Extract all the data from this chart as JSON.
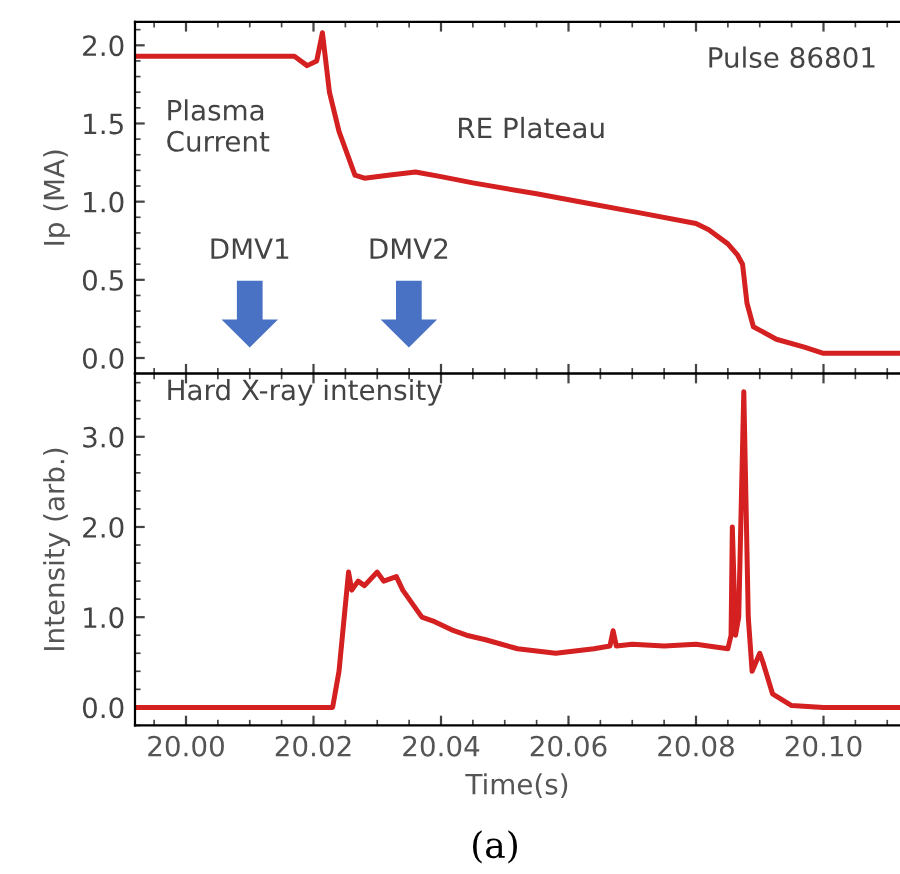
{
  "chart_data": [
    {
      "type": "line",
      "ylabel": "Ip (MA)",
      "xlim": [
        19.992,
        20.112
      ],
      "ylim": [
        -0.1,
        2.15
      ],
      "yticks": [
        {
          "value": 0,
          "label": "0.0"
        },
        0.5,
        {
          "value": 1,
          "label": "1.0"
        },
        1.5,
        {
          "value": 2,
          "label": "2.0"
        }
      ],
      "xticks": [
        20.0,
        20.02,
        20.04,
        20.06,
        20.08,
        20.1
      ],
      "tick_labels": "y",
      "grid": false,
      "legend": false,
      "annotations": [
        "Pulse 86801",
        "Plasma\nCurrent",
        "RE Plateau",
        "DMV1",
        "DMV2"
      ],
      "series": [
        {
          "color": "#d42020",
          "x": [
            19.992,
            20.0,
            20.01,
            20.017,
            20.019,
            20.0205,
            20.0214,
            20.0225,
            20.024,
            20.0265,
            20.028,
            20.032,
            20.036,
            20.04,
            20.045,
            20.055,
            20.063,
            20.071,
            20.08,
            20.082,
            20.085,
            20.0865,
            20.0873,
            20.088,
            20.089,
            20.0926,
            20.097,
            20.1,
            20.112
          ],
          "values": [
            1.93,
            1.93,
            1.93,
            1.93,
            1.87,
            1.9,
            2.08,
            1.7,
            1.45,
            1.17,
            1.15,
            1.17,
            1.19,
            1.16,
            1.12,
            1.05,
            0.99,
            0.93,
            0.86,
            0.82,
            0.73,
            0.66,
            0.6,
            0.35,
            0.2,
            0.12,
            0.07,
            0.03,
            0.03
          ]
        }
      ]
    },
    {
      "type": "line",
      "ylabel": "Intensity (arb.)",
      "xlabel": "Time(s)",
      "xlim": [
        19.992,
        20.112
      ],
      "ylim": [
        -0.2,
        3.7
      ],
      "yticks": [
        {
          "value": 0,
          "label": "0.0"
        },
        {
          "value": 1,
          "label": "1.0"
        },
        {
          "value": 2,
          "label": "2.0"
        },
        {
          "value": 3,
          "label": "3.0"
        }
      ],
      "xticks": [
        {
          "value": 20.0,
          "label": "20.00"
        },
        20.02,
        20.04,
        20.06,
        20.08,
        {
          "value": 20.1,
          "label": "20.10"
        }
      ],
      "grid": false,
      "legend": false,
      "annotations": [
        "Hard X-ray intensity",
        "(a)"
      ],
      "series": [
        {
          "color": "#d42020",
          "x": [
            19.992,
            20.0,
            20.01,
            20.02,
            20.023,
            20.024,
            20.0255,
            20.026,
            20.027,
            20.028,
            20.03,
            20.031,
            20.033,
            20.034,
            20.037,
            20.039,
            20.042,
            20.044,
            20.047,
            20.052,
            20.058,
            20.064,
            20.0665,
            20.067,
            20.0675,
            20.07,
            20.075,
            20.08,
            20.085,
            20.0855,
            20.0857,
            20.0862,
            20.0867,
            20.0875,
            20.0882,
            20.0888,
            20.09,
            20.0905,
            20.092,
            20.095,
            20.1,
            20.112
          ],
          "values": [
            0,
            0,
            0,
            0,
            0,
            0.4,
            1.5,
            1.3,
            1.4,
            1.35,
            1.5,
            1.4,
            1.45,
            1.3,
            1.0,
            0.95,
            0.85,
            0.8,
            0.75,
            0.65,
            0.6,
            0.65,
            0.68,
            0.85,
            0.68,
            0.7,
            0.68,
            0.7,
            0.65,
            0.8,
            2.0,
            0.8,
            1.0,
            3.5,
            1.0,
            0.4,
            0.6,
            0.5,
            0.15,
            0.02,
            0,
            0
          ]
        }
      ]
    }
  ]
}
